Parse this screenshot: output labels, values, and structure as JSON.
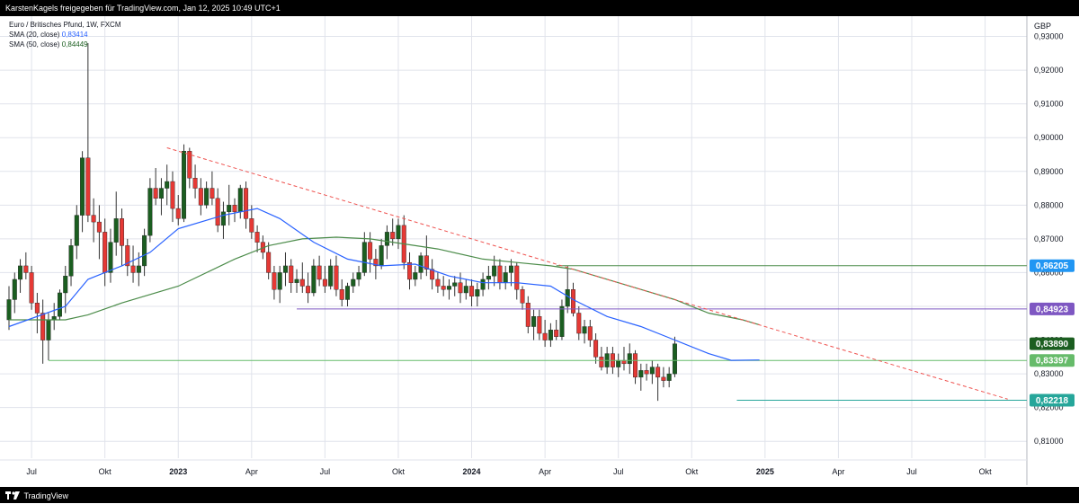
{
  "header": {
    "attribution": "KarstenKagels freigegeben für TradingView.com, Jan 12, 2025 10:49 UTC+1"
  },
  "legend": {
    "title": "Euro / Britisches Pfund, 1W, FXCM",
    "sma20_label": "SMA (20, close)",
    "sma20_value": "0,83414",
    "sma50_label": "SMA (50, close)",
    "sma50_value": "0,84449"
  },
  "footer": {
    "brand": "TradingView"
  },
  "colors": {
    "up": "#1b5e20",
    "down": "#e53935",
    "sma20": "#2962ff",
    "sma50": "#4c8c4a",
    "trendline": "#ef5350",
    "h_green": "#66bb6a",
    "h_purple": "#7e57c2",
    "h_blue": "#2196f3",
    "h_teal": "#26a69a",
    "grid": "#e0e3eb"
  },
  "chart_data": {
    "type": "candlestick",
    "currency": "GBP",
    "ylim": [
      0.805,
      0.936
    ],
    "y_ticks": [
      {
        "v": 0.81,
        "t": "0,81000"
      },
      {
        "v": 0.82,
        "t": "0,82000"
      },
      {
        "v": 0.83,
        "t": "0,83000"
      },
      {
        "v": 0.84,
        "t": "0,84000"
      },
      {
        "v": 0.85,
        "t": "0,85000"
      },
      {
        "v": 0.86,
        "t": "0,86000"
      },
      {
        "v": 0.87,
        "t": "0,87000"
      },
      {
        "v": 0.88,
        "t": "0,88000"
      },
      {
        "v": 0.89,
        "t": "0,89000"
      },
      {
        "v": 0.9,
        "t": "0,90000"
      },
      {
        "v": 0.91,
        "t": "0,91000"
      },
      {
        "v": 0.92,
        "t": "0,92000"
      },
      {
        "v": 0.93,
        "t": "0,93000"
      }
    ],
    "x_ticks": [
      {
        "i": 4,
        "t": "Jul",
        "bold": false
      },
      {
        "i": 17,
        "t": "Okt",
        "bold": false
      },
      {
        "i": 30,
        "t": "2023",
        "bold": true
      },
      {
        "i": 43,
        "t": "Apr",
        "bold": false
      },
      {
        "i": 56,
        "t": "Jul",
        "bold": false
      },
      {
        "i": 69,
        "t": "Okt",
        "bold": false
      },
      {
        "i": 82,
        "t": "2024",
        "bold": true
      },
      {
        "i": 95,
        "t": "Apr",
        "bold": false
      },
      {
        "i": 108,
        "t": "Jul",
        "bold": false
      },
      {
        "i": 121,
        "t": "Okt",
        "bold": false
      },
      {
        "i": 134,
        "t": "2025",
        "bold": true
      },
      {
        "i": 147,
        "t": "Apr",
        "bold": false
      },
      {
        "i": 160,
        "t": "Jul",
        "bold": false
      },
      {
        "i": 173,
        "t": "Okt",
        "bold": false
      }
    ],
    "ohlc": [
      [
        0.846,
        0.856,
        0.843,
        0.852
      ],
      [
        0.852,
        0.86,
        0.848,
        0.858
      ],
      [
        0.858,
        0.864,
        0.854,
        0.862
      ],
      [
        0.862,
        0.866,
        0.858,
        0.86
      ],
      [
        0.86,
        0.862,
        0.849,
        0.851
      ],
      [
        0.851,
        0.854,
        0.842,
        0.848
      ],
      [
        0.848,
        0.852,
        0.833,
        0.84
      ],
      [
        0.84,
        0.848,
        0.834,
        0.846
      ],
      [
        0.846,
        0.851,
        0.843,
        0.847
      ],
      [
        0.847,
        0.855,
        0.846,
        0.854
      ],
      [
        0.854,
        0.862,
        0.848,
        0.859
      ],
      [
        0.859,
        0.87,
        0.856,
        0.868
      ],
      [
        0.868,
        0.88,
        0.864,
        0.877
      ],
      [
        0.877,
        0.896,
        0.872,
        0.894
      ],
      [
        0.894,
        0.928,
        0.875,
        0.877
      ],
      [
        0.877,
        0.882,
        0.869,
        0.875
      ],
      [
        0.875,
        0.88,
        0.864,
        0.872
      ],
      [
        0.872,
        0.876,
        0.856,
        0.86
      ],
      [
        0.86,
        0.873,
        0.857,
        0.869
      ],
      [
        0.869,
        0.884,
        0.865,
        0.876
      ],
      [
        0.876,
        0.879,
        0.862,
        0.868
      ],
      [
        0.868,
        0.87,
        0.859,
        0.862
      ],
      [
        0.862,
        0.868,
        0.857,
        0.86
      ],
      [
        0.86,
        0.866,
        0.856,
        0.862
      ],
      [
        0.862,
        0.873,
        0.859,
        0.871
      ],
      [
        0.871,
        0.888,
        0.869,
        0.885
      ],
      [
        0.885,
        0.891,
        0.88,
        0.882
      ],
      [
        0.882,
        0.888,
        0.877,
        0.885
      ],
      [
        0.885,
        0.892,
        0.88,
        0.887
      ],
      [
        0.887,
        0.89,
        0.875,
        0.879
      ],
      [
        0.879,
        0.883,
        0.874,
        0.876
      ],
      [
        0.876,
        0.898,
        0.875,
        0.896
      ],
      [
        0.896,
        0.897,
        0.885,
        0.888
      ],
      [
        0.888,
        0.892,
        0.882,
        0.885
      ],
      [
        0.885,
        0.888,
        0.877,
        0.88
      ],
      [
        0.88,
        0.887,
        0.879,
        0.885
      ],
      [
        0.885,
        0.89,
        0.88,
        0.882
      ],
      [
        0.882,
        0.885,
        0.872,
        0.874
      ],
      [
        0.874,
        0.881,
        0.87,
        0.878
      ],
      [
        0.878,
        0.886,
        0.874,
        0.88
      ],
      [
        0.88,
        0.882,
        0.875,
        0.878
      ],
      [
        0.878,
        0.886,
        0.876,
        0.885
      ],
      [
        0.885,
        0.887,
        0.873,
        0.876
      ],
      [
        0.876,
        0.88,
        0.87,
        0.872
      ],
      [
        0.872,
        0.874,
        0.866,
        0.869
      ],
      [
        0.869,
        0.871,
        0.864,
        0.866
      ],
      [
        0.866,
        0.869,
        0.858,
        0.86
      ],
      [
        0.86,
        0.862,
        0.852,
        0.855
      ],
      [
        0.855,
        0.862,
        0.851,
        0.86
      ],
      [
        0.86,
        0.866,
        0.856,
        0.862
      ],
      [
        0.862,
        0.864,
        0.854,
        0.857
      ],
      [
        0.857,
        0.861,
        0.854,
        0.858
      ],
      [
        0.858,
        0.863,
        0.854,
        0.856
      ],
      [
        0.856,
        0.86,
        0.851,
        0.854
      ],
      [
        0.854,
        0.864,
        0.853,
        0.862
      ],
      [
        0.862,
        0.865,
        0.856,
        0.858
      ],
      [
        0.858,
        0.862,
        0.854,
        0.856
      ],
      [
        0.856,
        0.864,
        0.855,
        0.862
      ],
      [
        0.862,
        0.865,
        0.853,
        0.855
      ],
      [
        0.855,
        0.858,
        0.85,
        0.852
      ],
      [
        0.852,
        0.857,
        0.85,
        0.856
      ],
      [
        0.856,
        0.86,
        0.854,
        0.858
      ],
      [
        0.858,
        0.862,
        0.856,
        0.86
      ],
      [
        0.86,
        0.872,
        0.859,
        0.869
      ],
      [
        0.869,
        0.872,
        0.86,
        0.864
      ],
      [
        0.864,
        0.867,
        0.858,
        0.862
      ],
      [
        0.862,
        0.87,
        0.861,
        0.868
      ],
      [
        0.868,
        0.874,
        0.864,
        0.872
      ],
      [
        0.872,
        0.876,
        0.868,
        0.87
      ],
      [
        0.87,
        0.876,
        0.867,
        0.874
      ],
      [
        0.874,
        0.877,
        0.861,
        0.863
      ],
      [
        0.863,
        0.866,
        0.855,
        0.858
      ],
      [
        0.858,
        0.862,
        0.856,
        0.86
      ],
      [
        0.86,
        0.866,
        0.858,
        0.865
      ],
      [
        0.865,
        0.871,
        0.859,
        0.861
      ],
      [
        0.861,
        0.864,
        0.855,
        0.858
      ],
      [
        0.858,
        0.86,
        0.854,
        0.856
      ],
      [
        0.856,
        0.859,
        0.853,
        0.855
      ],
      [
        0.855,
        0.858,
        0.852,
        0.856
      ],
      [
        0.856,
        0.859,
        0.853,
        0.857
      ],
      [
        0.857,
        0.86,
        0.851,
        0.854
      ],
      [
        0.854,
        0.858,
        0.852,
        0.856
      ],
      [
        0.856,
        0.858,
        0.85,
        0.853
      ],
      [
        0.853,
        0.857,
        0.85,
        0.855
      ],
      [
        0.855,
        0.86,
        0.853,
        0.858
      ],
      [
        0.858,
        0.862,
        0.855,
        0.859
      ],
      [
        0.859,
        0.865,
        0.856,
        0.862
      ],
      [
        0.862,
        0.864,
        0.855,
        0.857
      ],
      [
        0.857,
        0.862,
        0.855,
        0.86
      ],
      [
        0.86,
        0.864,
        0.856,
        0.862
      ],
      [
        0.862,
        0.863,
        0.852,
        0.855
      ],
      [
        0.855,
        0.856,
        0.849,
        0.851
      ],
      [
        0.851,
        0.853,
        0.842,
        0.844
      ],
      [
        0.844,
        0.849,
        0.84,
        0.847
      ],
      [
        0.847,
        0.849,
        0.84,
        0.842
      ],
      [
        0.842,
        0.846,
        0.838,
        0.84
      ],
      [
        0.84,
        0.845,
        0.838,
        0.843
      ],
      [
        0.843,
        0.846,
        0.84,
        0.841
      ],
      [
        0.841,
        0.852,
        0.84,
        0.85
      ],
      [
        0.85,
        0.862,
        0.848,
        0.855
      ],
      [
        0.855,
        0.857,
        0.847,
        0.848
      ],
      [
        0.848,
        0.85,
        0.84,
        0.842
      ],
      [
        0.842,
        0.846,
        0.839,
        0.844
      ],
      [
        0.844,
        0.846,
        0.838,
        0.84
      ],
      [
        0.84,
        0.842,
        0.833,
        0.835
      ],
      [
        0.835,
        0.838,
        0.831,
        0.832
      ],
      [
        0.832,
        0.838,
        0.83,
        0.836
      ],
      [
        0.836,
        0.838,
        0.83,
        0.832
      ],
      [
        0.832,
        0.836,
        0.829,
        0.834
      ],
      [
        0.834,
        0.838,
        0.831,
        0.833
      ],
      [
        0.833,
        0.839,
        0.83,
        0.836
      ],
      [
        0.836,
        0.837,
        0.827,
        0.829
      ],
      [
        0.829,
        0.833,
        0.825,
        0.831
      ],
      [
        0.831,
        0.833,
        0.828,
        0.83
      ],
      [
        0.83,
        0.834,
        0.827,
        0.832
      ],
      [
        0.832,
        0.833,
        0.822,
        0.829
      ],
      [
        0.829,
        0.832,
        0.826,
        0.828
      ],
      [
        0.828,
        0.832,
        0.826,
        0.83
      ],
      [
        0.83,
        0.841,
        0.829,
        0.8389
      ]
    ],
    "sma20": [
      [
        0,
        0.844
      ],
      [
        10,
        0.85
      ],
      [
        14,
        0.858
      ],
      [
        20,
        0.862
      ],
      [
        25,
        0.866
      ],
      [
        30,
        0.873
      ],
      [
        38,
        0.877
      ],
      [
        44,
        0.879
      ],
      [
        48,
        0.876
      ],
      [
        54,
        0.869
      ],
      [
        60,
        0.864
      ],
      [
        66,
        0.862
      ],
      [
        72,
        0.8625
      ],
      [
        78,
        0.859
      ],
      [
        84,
        0.857
      ],
      [
        90,
        0.857
      ],
      [
        96,
        0.856
      ],
      [
        100,
        0.852
      ],
      [
        106,
        0.847
      ],
      [
        112,
        0.844
      ],
      [
        118,
        0.84
      ],
      [
        124,
        0.836
      ],
      [
        128,
        0.834
      ],
      [
        133,
        0.8341
      ]
    ],
    "sma50": [
      [
        0,
        0.846
      ],
      [
        10,
        0.846
      ],
      [
        14,
        0.8475
      ],
      [
        20,
        0.851
      ],
      [
        30,
        0.856
      ],
      [
        40,
        0.864
      ],
      [
        46,
        0.868
      ],
      [
        52,
        0.87
      ],
      [
        58,
        0.8705
      ],
      [
        64,
        0.87
      ],
      [
        70,
        0.8685
      ],
      [
        76,
        0.867
      ],
      [
        84,
        0.864
      ],
      [
        90,
        0.863
      ],
      [
        96,
        0.862
      ],
      [
        100,
        0.861
      ],
      [
        106,
        0.858
      ],
      [
        112,
        0.855
      ],
      [
        118,
        0.852
      ],
      [
        124,
        0.848
      ],
      [
        130,
        0.846
      ],
      [
        133,
        0.8445
      ]
    ],
    "trendline": {
      "from": [
        28,
        0.897
      ],
      "to": [
        177,
        0.8225
      ]
    },
    "hlines": [
      {
        "from": 7,
        "v": 0.83397,
        "label": "0,83397",
        "color": "#66bb6a",
        "labelbg": "#66bb6a"
      },
      {
        "from": 51,
        "v": 0.84923,
        "label": "0,84923",
        "color": "#7e57c2",
        "labelbg": "#7e57c2"
      },
      {
        "from": 97,
        "v": 0.86205,
        "label": "0,86205",
        "color": "#4c8c4a",
        "labelbg": "#2196f3"
      },
      {
        "from": 129,
        "v": 0.82218,
        "label": "0,82218",
        "color": "#26a69a",
        "labelbg": "#26a69a"
      }
    ],
    "last_price": {
      "v": 0.8389,
      "label": "0,83890",
      "bg": "#1b5e20"
    }
  }
}
